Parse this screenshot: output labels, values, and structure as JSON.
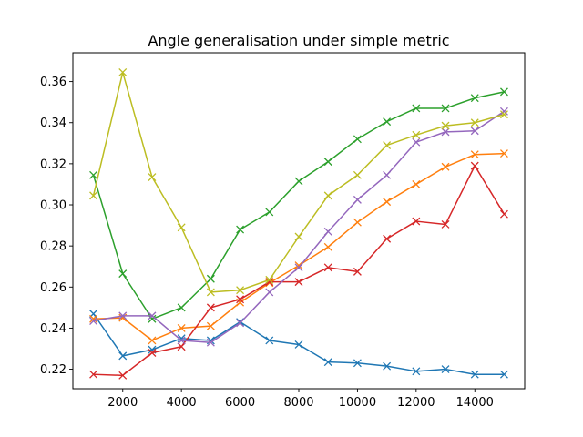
{
  "chart_data": {
    "type": "line",
    "title": "Angle generalisation under simple metric",
    "xlabel": "",
    "ylabel": "",
    "xlim": [
      300,
      15700
    ],
    "ylim": [
      0.2105,
      0.374
    ],
    "x_ticks": [
      2000,
      4000,
      6000,
      8000,
      10000,
      12000,
      14000
    ],
    "y_ticks": [
      0.22,
      0.24,
      0.26,
      0.28,
      0.3,
      0.32,
      0.34,
      0.36
    ],
    "y_tick_labels": [
      "0.22",
      "0.24",
      "0.26",
      "0.28",
      "0.30",
      "0.32",
      "0.34",
      "0.36"
    ],
    "grid": false,
    "marker": "x",
    "x": [
      1000,
      2000,
      3000,
      4000,
      5000,
      6000,
      7000,
      8000,
      9000,
      10000,
      11000,
      12000,
      13000,
      14000,
      15000
    ],
    "series": [
      {
        "color": "#1f77b4",
        "values": [
          0.247,
          0.2265,
          0.2295,
          0.235,
          0.234,
          0.243,
          0.234,
          0.232,
          0.2235,
          0.223,
          0.2215,
          0.219,
          0.22,
          0.2175,
          0.2175
        ]
      },
      {
        "color": "#ff7f0e",
        "values": [
          0.2445,
          0.245,
          0.234,
          0.24,
          0.241,
          0.2525,
          0.262,
          0.2705,
          0.2795,
          0.2915,
          0.3015,
          0.31,
          0.3185,
          0.3245,
          0.325
        ]
      },
      {
        "color": "#2ca02c",
        "values": [
          0.3145,
          0.2665,
          0.2445,
          0.25,
          0.264,
          0.288,
          0.2965,
          0.3115,
          0.321,
          0.332,
          0.3405,
          0.347,
          0.347,
          0.352,
          0.355
        ]
      },
      {
        "color": "#d62728",
        "values": [
          0.2175,
          0.217,
          0.228,
          0.231,
          0.25,
          0.254,
          0.2625,
          0.2625,
          0.2695,
          0.2675,
          0.2835,
          0.292,
          0.2905,
          0.319,
          0.2955
        ]
      },
      {
        "color": "#9467bd",
        "values": [
          0.2435,
          0.246,
          0.246,
          0.234,
          0.233,
          0.2425,
          0.2575,
          0.2695,
          0.287,
          0.3025,
          0.3145,
          0.3305,
          0.3355,
          0.336,
          0.3455
        ]
      },
      {
        "color": "#bcbd22",
        "values": [
          0.3045,
          0.3645,
          0.3135,
          0.289,
          0.2575,
          0.2585,
          0.2635,
          0.2845,
          0.3045,
          0.3145,
          0.329,
          0.334,
          0.3385,
          0.34,
          0.344
        ]
      }
    ]
  }
}
